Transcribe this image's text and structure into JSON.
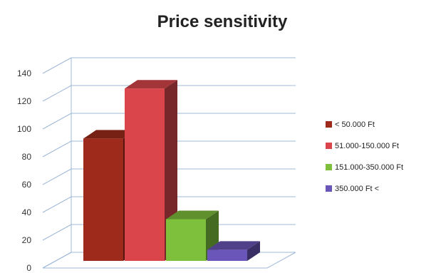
{
  "chart_data": {
    "type": "bar",
    "title": "Price sensitivity",
    "categories": [
      "< 50.000 Ft",
      "51.000-150.000 Ft",
      "151.000-350.000 Ft",
      "350.000 Ft <"
    ],
    "values": [
      88,
      124,
      30,
      8
    ],
    "colors": [
      "#9e2a1b",
      "#d9454a",
      "#7ec03c",
      "#6a55b8"
    ],
    "ylim": [
      0,
      140
    ],
    "yticks": [
      0,
      20,
      40,
      60,
      80,
      100,
      120,
      140
    ],
    "xlabel": "",
    "ylabel": "",
    "grid": true,
    "three_d": true,
    "legend_position": "right"
  }
}
